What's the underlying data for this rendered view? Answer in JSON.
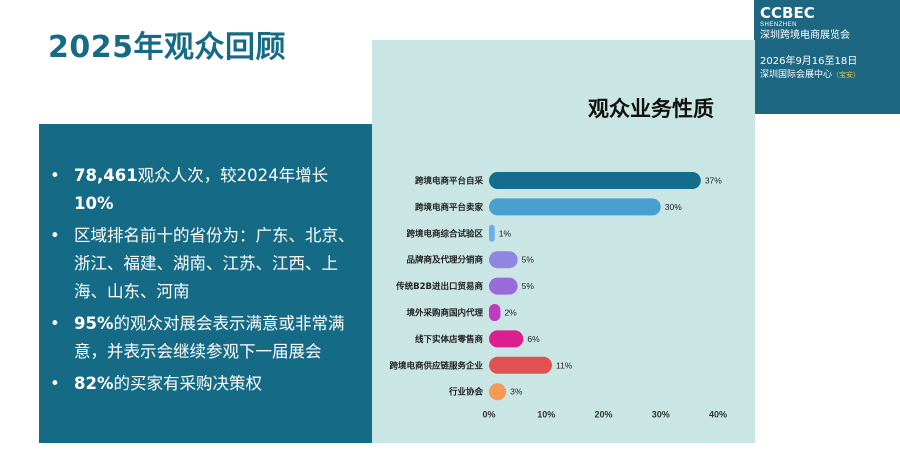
{
  "page": {
    "title": "2025年观众回顾"
  },
  "brand": {
    "name": "CCBEC",
    "city": "SHENZHEN",
    "expo_name": "深圳跨境电商展览会",
    "dates": "2026年9月16至18日",
    "venue": "深圳国际会展中心",
    "venue_tag": "（宝安）"
  },
  "highlights": [
    {
      "bold": "78,461",
      "text": "观众人次，较2024年增长",
      "tail_bold": "10%"
    },
    {
      "bold": "",
      "text": "区域排名前十的省份为：广东、北京、浙江、福建、湖南、江苏、江西、上海、山东、河南",
      "tail_bold": ""
    },
    {
      "bold": "95%",
      "text": "的观众对展会表示满意或非常满意，并表示会继续参观下一届展会",
      "tail_bold": ""
    },
    {
      "bold": "82%",
      "text": "的买家有采购决策权",
      "tail_bold": ""
    }
  ],
  "chart_data": {
    "type": "bar",
    "orientation": "horizontal",
    "title": "观众业务性质",
    "categories": [
      "跨境电商平台自采",
      "跨境电商平台卖家",
      "跨境电商综合试验区",
      "品牌商及代理分销商",
      "传统B2B进出口贸易商",
      "境外采购商国内代理",
      "线下实体店零售商",
      "跨境电商供应链服务企业",
      "行业协会"
    ],
    "values": [
      37,
      30,
      1,
      5,
      5,
      2,
      6,
      11,
      3
    ],
    "value_labels": [
      "37%",
      "30%",
      "1%",
      "5%",
      "5%",
      "2%",
      "6%",
      "11%",
      "3%"
    ],
    "colors": [
      "#146d8c",
      "#4a9fd1",
      "#6ab0ea",
      "#8f86e2",
      "#9b6ad9",
      "#c03cbf",
      "#dc1f8e",
      "#e0524f",
      "#f39a57"
    ],
    "xlim": [
      0,
      40
    ],
    "xticks": [
      0,
      10,
      20,
      30,
      40
    ],
    "xtick_labels": [
      "0%",
      "10%",
      "20%",
      "30%",
      "40%"
    ],
    "grid": false,
    "legend": "none"
  }
}
